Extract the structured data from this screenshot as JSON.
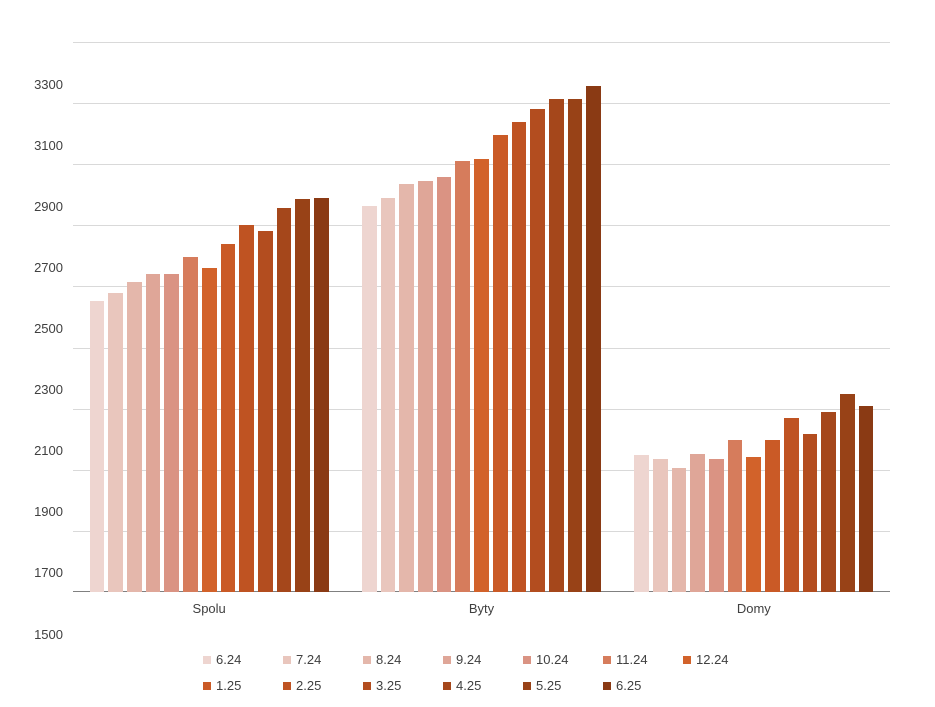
{
  "chart_data": {
    "type": "bar",
    "title": "",
    "categories": [
      "Spolu",
      "Byty",
      "Domy"
    ],
    "series": [
      {
        "name": "6.24",
        "color": "#eed5d0",
        "values": [
          2452,
          2763,
          1948
        ]
      },
      {
        "name": "7.24",
        "color": "#e9c6bd",
        "values": [
          2480,
          2788,
          1935
        ]
      },
      {
        "name": "8.24",
        "color": "#e4b7ab",
        "values": [
          2513,
          2836,
          1907
        ]
      },
      {
        "name": "9.24",
        "color": "#dfa698",
        "values": [
          2540,
          2845,
          1952
        ]
      },
      {
        "name": "10.24",
        "color": "#da9383",
        "values": [
          2540,
          2858,
          1936
        ]
      },
      {
        "name": "11.24",
        "color": "#d67c5c",
        "values": [
          2598,
          2910,
          1998
        ]
      },
      {
        "name": "12.24",
        "color": "#d2622a",
        "values": [
          2560,
          2917,
          1942
        ]
      },
      {
        "name": "1.25",
        "color": "#ca5a26",
        "values": [
          2640,
          2997,
          1996
        ]
      },
      {
        "name": "2.25",
        "color": "#bf5322",
        "values": [
          2701,
          3038,
          2069
        ]
      },
      {
        "name": "3.25",
        "color": "#b34d1f",
        "values": [
          2683,
          3080,
          2018
        ]
      },
      {
        "name": "4.25",
        "color": "#a5471b",
        "values": [
          2756,
          3113,
          2089
        ]
      },
      {
        "name": "5.25",
        "color": "#984217",
        "values": [
          2785,
          3113,
          2148
        ]
      },
      {
        "name": "6.25",
        "color": "#8a3a14",
        "values": [
          2788,
          3155,
          2110
        ]
      }
    ],
    "y_axis": {
      "min": 1500,
      "max": 3300,
      "step": 200,
      "ticks": [
        3300,
        3100,
        2900,
        2700,
        2500,
        2300,
        2100,
        1900,
        1700,
        1500
      ]
    },
    "grid": true,
    "legend_position": "bottom",
    "colors": {
      "gridline": "#d9d9d9",
      "axis_line": "#808080",
      "label_text": "#404040",
      "background": "#ffffff"
    }
  }
}
